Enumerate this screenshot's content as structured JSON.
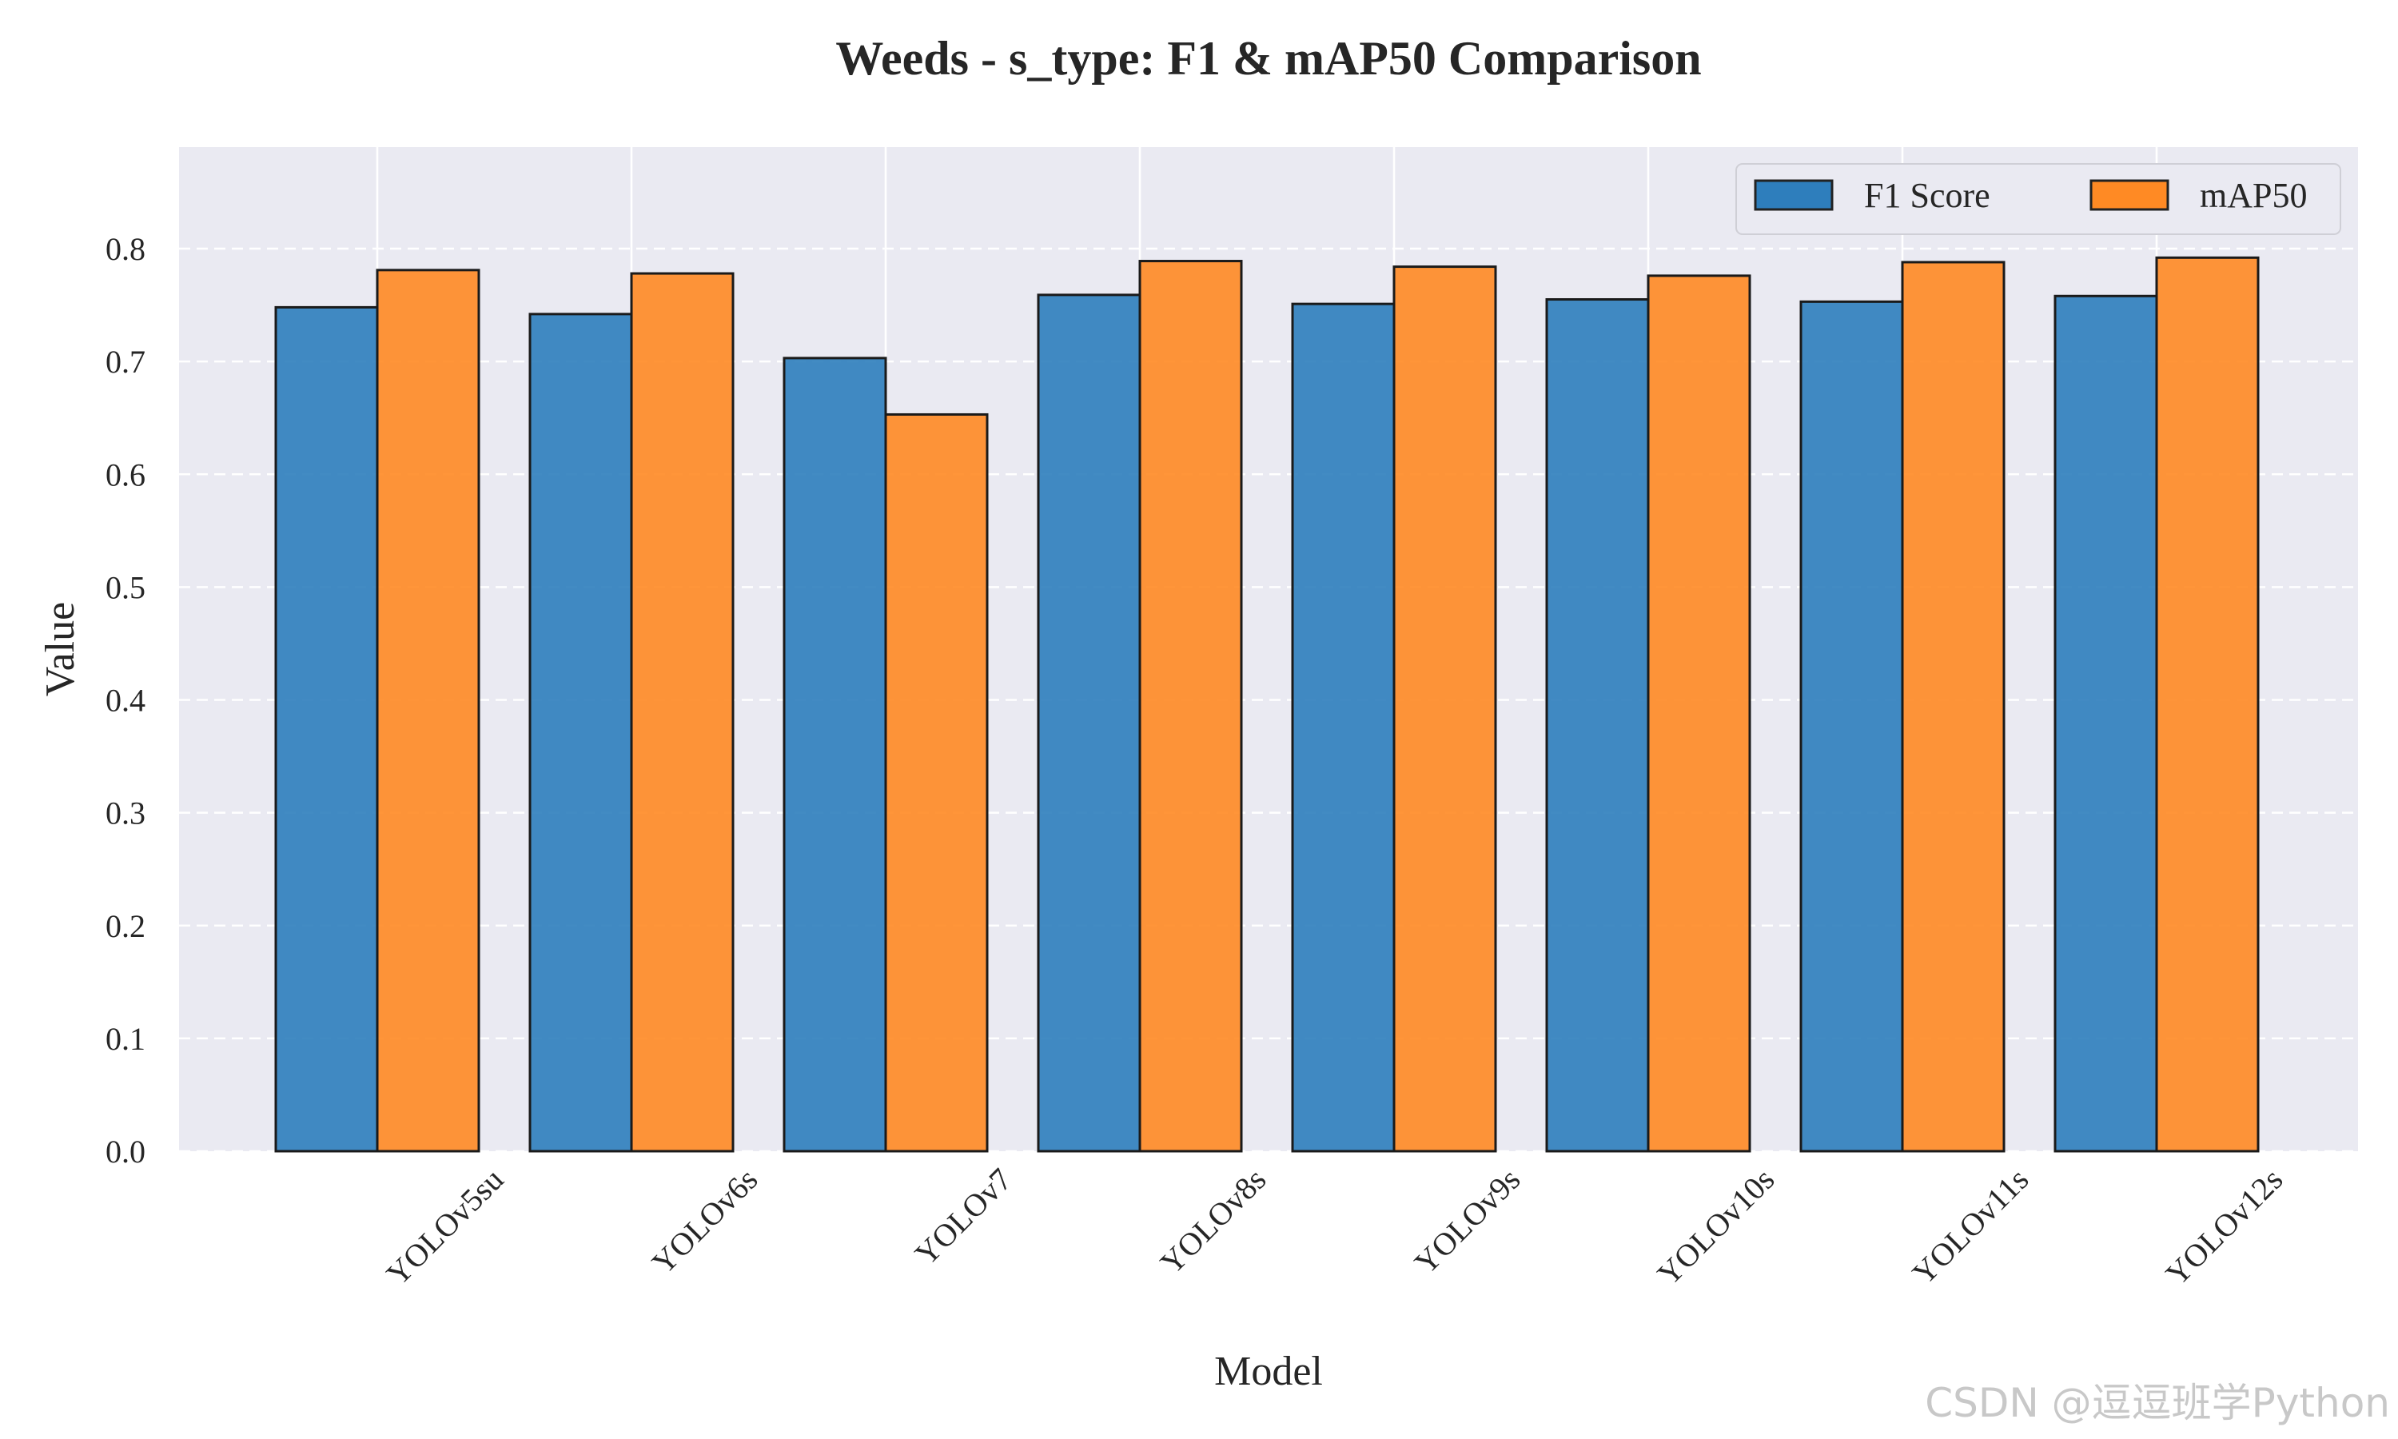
{
  "chart_data": {
    "type": "bar",
    "title": "Weeds - s_type: F1 & mAP50 Comparison",
    "xlabel": "Model",
    "ylabel": "Value",
    "categories": [
      "YOLOv5su",
      "YOLOv6s",
      "YOLOv7",
      "YOLOv8s",
      "YOLOv9s",
      "YOLOv10s",
      "YOLOv11s",
      "YOLOv12s"
    ],
    "series": [
      {
        "name": "F1 Score",
        "color": "#2E7EBC",
        "values": [
          0.748,
          0.742,
          0.703,
          0.759,
          0.751,
          0.755,
          0.753,
          0.758
        ]
      },
      {
        "name": "mAP50",
        "color": "#FF8A24",
        "values": [
          0.781,
          0.778,
          0.653,
          0.789,
          0.784,
          0.776,
          0.788,
          0.792
        ]
      }
    ],
    "ylim": [
      0,
      0.89
    ],
    "yticks": [
      "0.0",
      "0.1",
      "0.2",
      "0.3",
      "0.4",
      "0.5",
      "0.6",
      "0.7",
      "0.8"
    ],
    "grid": true,
    "legend_position": "top-right",
    "background_color": "#EAEAF2"
  },
  "watermark": "CSDN @逗逗班学Python"
}
